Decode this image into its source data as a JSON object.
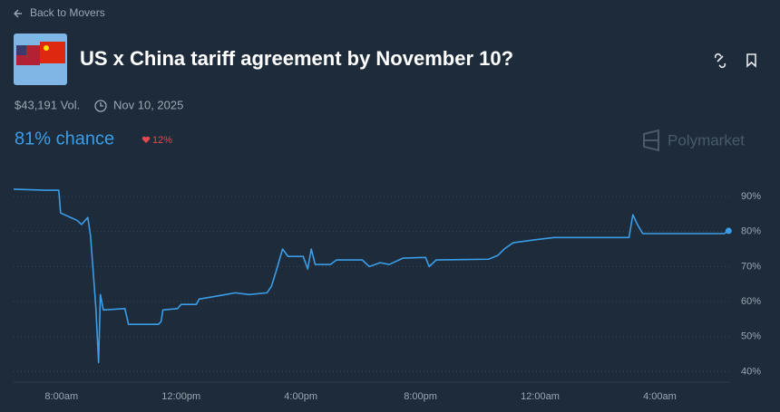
{
  "header": {
    "back": "Back to Movers",
    "title": "US x China tariff agreement by November 10?",
    "volume": "$43,191 Vol.",
    "date": "Nov 10, 2025",
    "chance": "81% chance",
    "change": "12%",
    "brand": "Polymarket"
  },
  "chart_data": {
    "type": "line",
    "color": "#3b9de6",
    "x": [
      6.4,
      7.46,
      7.91,
      7.97,
      8.31,
      8.52,
      8.67,
      8.88,
      8.97,
      9.15,
      9.24,
      9.3,
      9.4,
      10.12,
      10.24,
      11.24,
      11.33,
      11.39,
      11.88,
      12.0,
      12.51,
      12.6,
      13.36,
      13.81,
      14.27,
      14.87,
      15.02,
      15.17,
      15.39,
      15.57,
      16.08,
      16.23,
      16.35,
      16.48,
      16.99,
      17.2,
      18.05,
      18.29,
      18.65,
      18.96,
      19.41,
      20.17,
      20.29,
      20.53,
      22.28,
      22.59,
      22.8,
      23.1,
      23.8,
      24.46,
      26.97,
      27.1,
      27.25,
      27.43,
      30.15,
      30.3
    ],
    "values": [
      92.1,
      91.8,
      91.8,
      85.3,
      84,
      83.2,
      82,
      84,
      78.9,
      58.2,
      42.6,
      62,
      57.6,
      58,
      53.5,
      53.5,
      54.3,
      57.6,
      58,
      59.2,
      59.2,
      60.7,
      61.8,
      62.5,
      62,
      62.5,
      64.4,
      68.5,
      75,
      72.9,
      72.9,
      69.3,
      75,
      70.6,
      70.6,
      71.9,
      71.9,
      70,
      71.1,
      70.6,
      72.4,
      72.6,
      70,
      71.9,
      72.1,
      73.2,
      75,
      76.8,
      77.6,
      78.3,
      78.3,
      84.8,
      82,
      79.4,
      79.4,
      80.2
    ],
    "xlim": [
      6.4,
      30.35
    ],
    "ylim": [
      37,
      94.4
    ],
    "xticks": [
      {
        "value": 8,
        "label": "8:00am"
      },
      {
        "value": 12,
        "label": "12:00pm"
      },
      {
        "value": 16,
        "label": "4:00pm"
      },
      {
        "value": 20,
        "label": "8:00pm"
      },
      {
        "value": 24,
        "label": "12:00am"
      },
      {
        "value": 28,
        "label": "4:00am"
      }
    ],
    "yticks": [
      {
        "value": 40,
        "label": "40%"
      },
      {
        "value": 50,
        "label": "50%"
      },
      {
        "value": 60,
        "label": "60%"
      },
      {
        "value": 70,
        "label": "70%"
      },
      {
        "value": 80,
        "label": "80%"
      },
      {
        "value": 90,
        "label": "90%"
      }
    ],
    "grid": true
  }
}
